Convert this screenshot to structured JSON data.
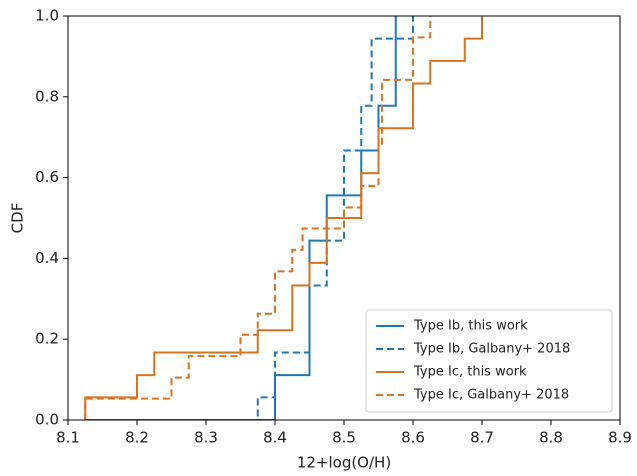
{
  "chart_data": {
    "type": "step",
    "x_label": "12+log(O/H)",
    "y_label": "CDF",
    "xlim": [
      8.1,
      8.9
    ],
    "xticks": [
      8.1,
      8.2,
      8.3,
      8.4,
      8.5,
      8.6,
      8.7,
      8.8,
      8.9
    ],
    "ylim": [
      0,
      1
    ],
    "yticks": [
      {
        "value": 0,
        "label": "0.0"
      },
      0.2,
      0.4,
      0.6,
      0.8,
      {
        "value": 1,
        "label": "1.0"
      }
    ],
    "legend": "lower right",
    "series": [
      {
        "name": "Type Ib, this work",
        "color": "#1f77b4",
        "dashed": false,
        "x": [
          8.125,
          8.4,
          8.45,
          8.475,
          8.525,
          8.55,
          8.575
        ],
        "values": [
          0,
          0.111,
          0.444,
          0.556,
          0.667,
          0.778,
          1.0
        ]
      },
      {
        "name": "Type Ib, Galbany+ 2018",
        "color": "#1f77b4",
        "dashed": true,
        "x": [
          8.125,
          8.375,
          8.4,
          8.45,
          8.475,
          8.5,
          8.525,
          8.54,
          8.6
        ],
        "values": [
          0,
          0.056,
          0.167,
          0.333,
          0.444,
          0.667,
          0.778,
          0.944,
          1.0
        ]
      },
      {
        "name": "Type Ic, this work",
        "color": "#d9731e",
        "dashed": false,
        "x": [
          8.125,
          8.125,
          8.2,
          8.225,
          8.375,
          8.425,
          8.45,
          8.475,
          8.525,
          8.55,
          8.6,
          8.625,
          8.675,
          8.7
        ],
        "values": [
          0,
          0.056,
          0.111,
          0.167,
          0.222,
          0.333,
          0.389,
          0.5,
          0.611,
          0.722,
          0.833,
          0.889,
          0.944,
          1.0
        ]
      },
      {
        "name": "Type Ic, Galbany+ 2018",
        "color": "#d9731e",
        "dashed": true,
        "x": [
          8.125,
          8.125,
          8.25,
          8.275,
          8.35,
          8.375,
          8.4,
          8.425,
          8.44,
          8.5,
          8.525,
          8.55,
          8.555,
          8.6,
          8.625
        ],
        "values": [
          0,
          0.053,
          0.105,
          0.158,
          0.211,
          0.263,
          0.368,
          0.421,
          0.474,
          0.526,
          0.579,
          0.684,
          0.842,
          0.947,
          1.0
        ]
      }
    ]
  }
}
